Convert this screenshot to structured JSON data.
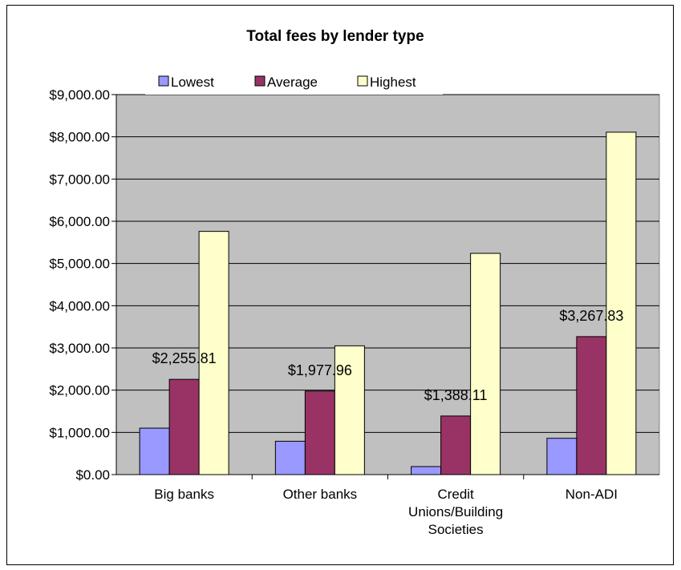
{
  "chart_data": {
    "type": "bar",
    "title": "Total fees by lender type",
    "xlabel": "",
    "ylabel": "",
    "categories": [
      "Big banks",
      "Other banks",
      "Credit Unions/Building Societies",
      "Non-ADI"
    ],
    "category_lines": [
      [
        "Big banks"
      ],
      [
        "Other banks"
      ],
      [
        "Credit",
        "Unions/Building",
        "Societies"
      ],
      [
        "Non-ADI"
      ]
    ],
    "series": [
      {
        "name": "Lowest",
        "color": "#9999FF",
        "values": [
          1100,
          790,
          190,
          860
        ]
      },
      {
        "name": "Average",
        "color": "#993366",
        "values": [
          2255.81,
          1977.96,
          1388.11,
          3267.83
        ]
      },
      {
        "name": "Highest",
        "color": "#FFFFCC",
        "values": [
          5760,
          3050,
          5240,
          8110
        ]
      }
    ],
    "data_labels": [
      "$2,255.81",
      "$1,977.96",
      "$1,388.11",
      "$3,267.83"
    ],
    "data_label_series": "Average",
    "ylim": [
      0,
      9000
    ],
    "yticks": [
      0,
      1000,
      2000,
      3000,
      4000,
      5000,
      6000,
      7000,
      8000,
      9000
    ],
    "ytick_labels": [
      "$0.00",
      "$1,000.00",
      "$2,000.00",
      "$3,000.00",
      "$4,000.00",
      "$5,000.00",
      "$6,000.00",
      "$7,000.00",
      "$8,000.00",
      "$9,000.00"
    ],
    "grid": true,
    "legend": "top",
    "plot_background": "#C0C0C0"
  }
}
